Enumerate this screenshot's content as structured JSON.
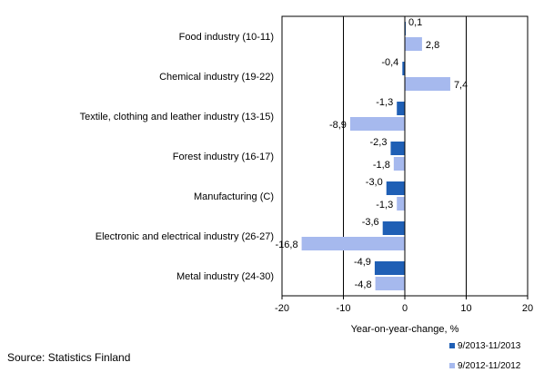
{
  "chart_data": {
    "type": "bar",
    "orientation": "horizontal",
    "categories": [
      "Food industry (10-11)",
      "Chemical industry (19-22)",
      "Textile, clothing and leather industry (13-15)",
      "Forest industry (16-17)",
      "Manufacturing (C)",
      "Electronic and electrical industry (26-27)",
      "Metal industry (24-30)"
    ],
    "series": [
      {
        "name": "9/2013-11/2013",
        "color": "#1f5fb5",
        "values": [
          0.1,
          -0.4,
          -1.3,
          -2.3,
          -3.0,
          -3.6,
          -4.9
        ],
        "labels": [
          "0,1",
          "-0,4",
          "-1,3",
          "-2,3",
          "-3,0",
          "-3,6",
          "-4,9"
        ]
      },
      {
        "name": "9/2012-11/2012",
        "color": "#a6b9ee",
        "values": [
          2.8,
          7.4,
          -8.9,
          -1.8,
          -1.3,
          -16.8,
          -4.8
        ],
        "labels": [
          "2,8",
          "7,4",
          "-8,9",
          "-1,8",
          "-1,3",
          "-16,8",
          "-4,8"
        ]
      }
    ],
    "xlim": [
      -20,
      20
    ],
    "xticks": [
      -20,
      -10,
      0,
      10,
      20
    ],
    "xtick_labels": [
      "-20",
      "-10",
      "0",
      "10",
      "20"
    ],
    "xlabel": "Year-on-year-change, %",
    "gridlines_at": [
      -10,
      10
    ],
    "legend_position": "bottom-right"
  },
  "source": "Source: Statistics Finland"
}
